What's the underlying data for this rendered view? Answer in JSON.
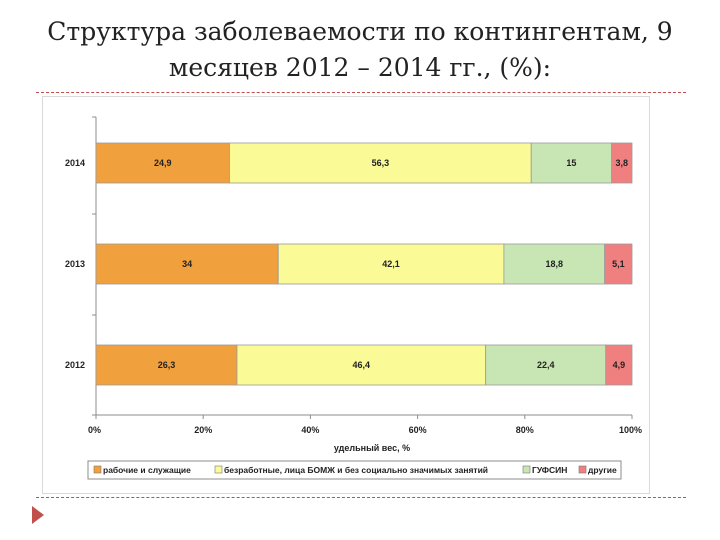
{
  "slide": {
    "title_line1": "Структура заболеваемости по контингентам, 9",
    "title_line2": "месяцев 2012 – 2014 гг., (%):"
  },
  "colors": {
    "accent": "#c0504d",
    "series": [
      "#f0a03c",
      "#fafa96",
      "#c8e6b4",
      "#f08080"
    ]
  },
  "chart_data": {
    "type": "bar",
    "orientation": "horizontal",
    "stacked": "percent",
    "categories": [
      "2014",
      "2013",
      "2012"
    ],
    "series": [
      {
        "name": "рабочие и служащие",
        "values": [
          24.9,
          34,
          26.3
        ],
        "labels": [
          "24,9",
          "34",
          "26,3"
        ]
      },
      {
        "name": "безработные, лица БОМЖ и без социально значимых занятий",
        "values": [
          56.3,
          42.1,
          46.4
        ],
        "labels": [
          "56,3",
          "42,1",
          "46,4"
        ]
      },
      {
        "name": "ГУФСИН",
        "values": [
          15,
          18.8,
          22.4
        ],
        "labels": [
          "15",
          "18,8",
          "22,4"
        ]
      },
      {
        "name": "другие",
        "values": [
          3.8,
          5.1,
          4.9
        ],
        "labels": [
          "3,8",
          "5,1",
          "4,9"
        ]
      }
    ],
    "xlabel": "удельный вес, %",
    "xlim": [
      0,
      100
    ],
    "xticks": [
      "0%",
      "20%",
      "40%",
      "60%",
      "80%",
      "100%"
    ],
    "legend_position": "bottom",
    "grid": false
  }
}
